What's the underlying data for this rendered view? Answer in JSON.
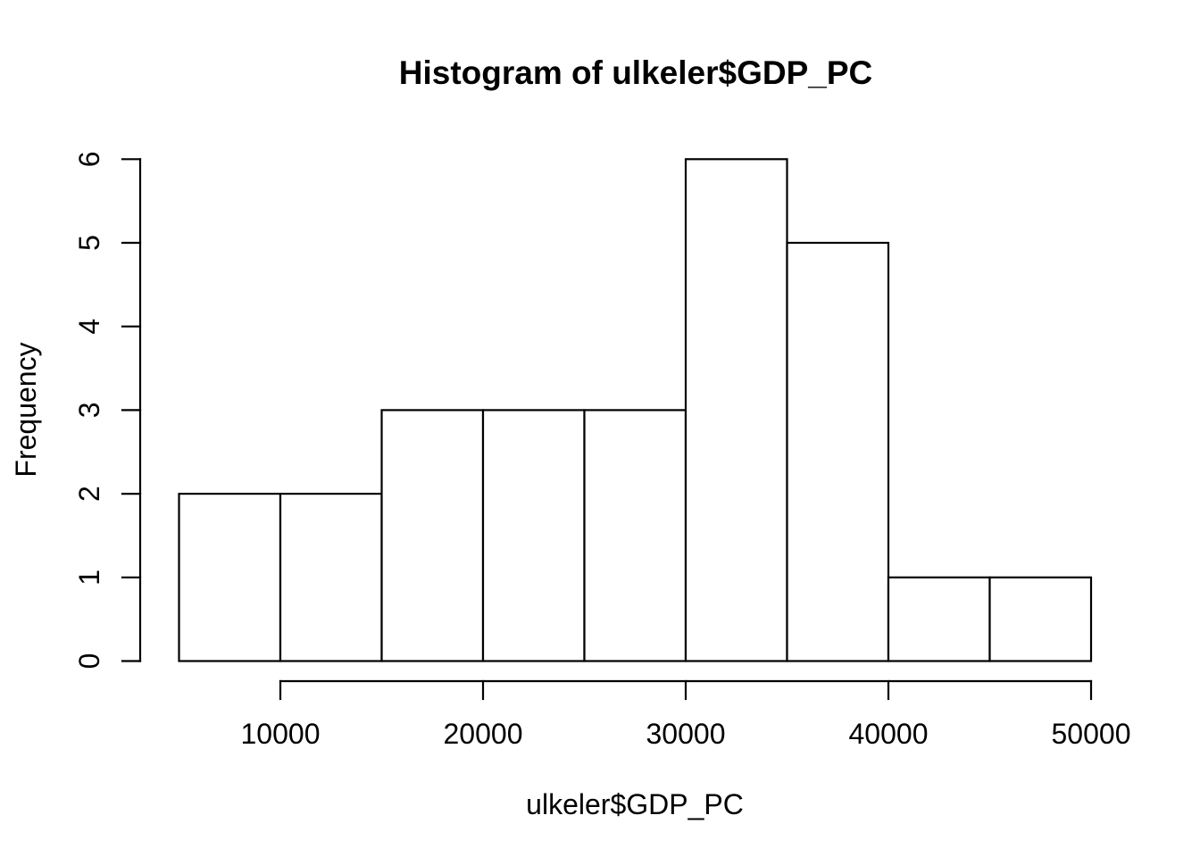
{
  "chart_data": {
    "type": "bar",
    "subtype": "histogram",
    "title": "Histogram of ulkeler$GDP_PC",
    "xlabel": "ulkeler$GDP_PC",
    "ylabel": "Frequency",
    "breaks": [
      5000,
      10000,
      15000,
      20000,
      25000,
      30000,
      35000,
      40000,
      45000,
      50000
    ],
    "counts": [
      2,
      2,
      3,
      3,
      3,
      6,
      5,
      1,
      1
    ],
    "x_ticks": [
      10000,
      20000,
      30000,
      40000,
      50000
    ],
    "x_tick_labels": [
      "10000",
      "20000",
      "30000",
      "40000",
      "50000"
    ],
    "y_ticks": [
      0,
      1,
      2,
      3,
      4,
      5,
      6
    ],
    "y_tick_labels": [
      "0",
      "1",
      "2",
      "3",
      "4",
      "5",
      "6"
    ],
    "xlim": [
      3200,
      51800
    ],
    "ylim": [
      0,
      6
    ],
    "grid": "off",
    "legend": "none",
    "bar_fill": "#ffffff",
    "bar_border": "#000000",
    "text_color": "#000000",
    "background": "#ffffff"
  }
}
